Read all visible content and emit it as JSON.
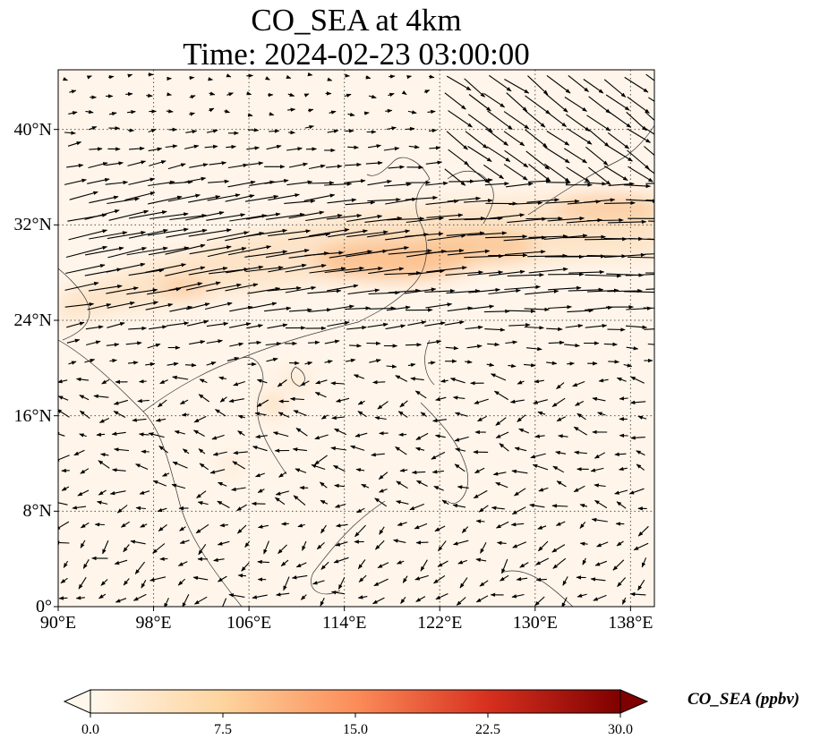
{
  "title_line1": "CO_SEA at 4km",
  "title_line2": "Time: 2024-02-23 03:00:00",
  "map": {
    "lon_range": [
      90,
      140
    ],
    "lat_range": [
      0,
      45
    ],
    "lon_ticks": [
      {
        "value": 90,
        "label": "90°E"
      },
      {
        "value": 98,
        "label": "98°E"
      },
      {
        "value": 106,
        "label": "106°E"
      },
      {
        "value": 114,
        "label": "114°E"
      },
      {
        "value": 122,
        "label": "122°E"
      },
      {
        "value": 130,
        "label": "130°E"
      },
      {
        "value": 138,
        "label": "138°E"
      }
    ],
    "lat_ticks": [
      {
        "value": 0,
        "label": "0°"
      },
      {
        "value": 8,
        "label": "8°N"
      },
      {
        "value": 16,
        "label": "16°N"
      },
      {
        "value": 24,
        "label": "24°N"
      },
      {
        "value": 32,
        "label": "32°N"
      },
      {
        "value": 40,
        "label": "40°N"
      }
    ],
    "gridlines": "dotted",
    "colormap": "OrRd",
    "background_color": "#fff5ea"
  },
  "colorbar": {
    "label": "CO_SEA (ppbv)",
    "ticks": [
      "0.0",
      "7.5",
      "15.0",
      "22.5",
      "30.0"
    ],
    "range": [
      0,
      30
    ],
    "extend": "both",
    "colors": [
      "#fff7ec",
      "#fdd49e",
      "#fc8d59",
      "#d7301f",
      "#7f0000"
    ]
  }
}
